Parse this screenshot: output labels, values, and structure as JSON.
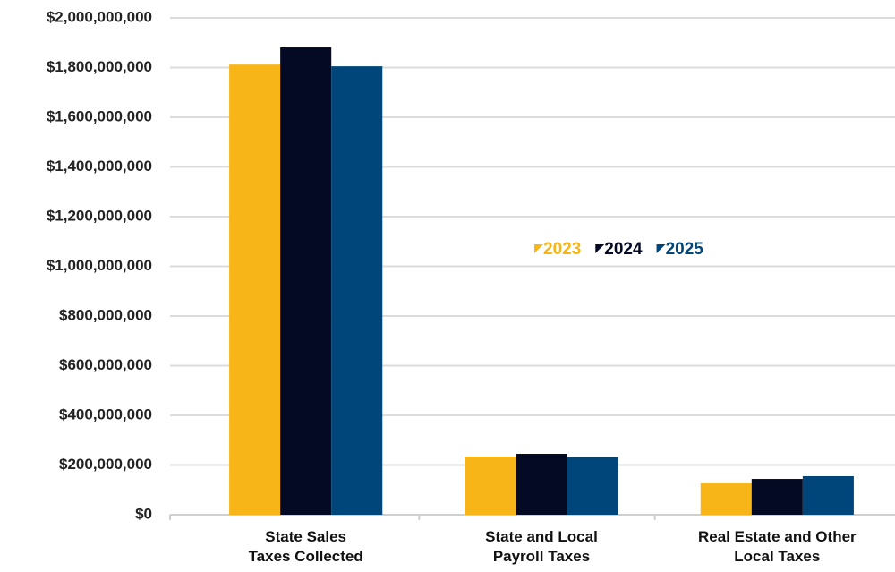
{
  "chart_data": {
    "type": "bar",
    "categories": [
      "State Sales\nTaxes Collected",
      "State and Local\nPayroll Taxes",
      "Real Estate and Other\nLocal Taxes"
    ],
    "series": [
      {
        "name": "2023",
        "color": "#f8b518",
        "values": [
          1812000000,
          234000000,
          126000000
        ]
      },
      {
        "name": "2024",
        "color": "#050a24",
        "values": [
          1881000000,
          245000000,
          144000000
        ]
      },
      {
        "name": "2025",
        "color": "#00467a",
        "values": [
          1805000000,
          232000000,
          155000000
        ]
      }
    ],
    "ylim": [
      0,
      2000000000
    ],
    "yticks": [
      {
        "value": 0,
        "label": "$0"
      },
      {
        "value": 200000000,
        "label": "$200,000,000"
      },
      {
        "value": 400000000,
        "label": "$400,000,000"
      },
      {
        "value": 600000000,
        "label": "$600,000,000"
      },
      {
        "value": 800000000,
        "label": "$800,000,000"
      },
      {
        "value": 1000000000,
        "label": "$1,000,000,000"
      },
      {
        "value": 1200000000,
        "label": "$1,200,000,000"
      },
      {
        "value": 1400000000,
        "label": "$1,400,000,000"
      },
      {
        "value": 1600000000,
        "label": "$1,600,000,000"
      },
      {
        "value": 1800000000,
        "label": "$1,800,000,000"
      },
      {
        "value": 2000000000,
        "label": "$2,000,000,000"
      }
    ],
    "grid": true,
    "legend": "center"
  }
}
